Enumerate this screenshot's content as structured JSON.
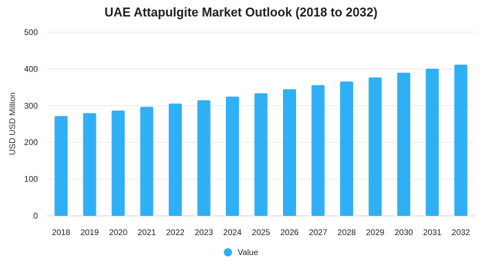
{
  "chart_data": {
    "type": "bar",
    "title": "UAE Attapulgite Market Outlook (2018 to 2032)",
    "xlabel": "",
    "ylabel": "USD USD Million",
    "categories": [
      "2018",
      "2019",
      "2020",
      "2021",
      "2022",
      "2023",
      "2024",
      "2025",
      "2026",
      "2027",
      "2028",
      "2029",
      "2030",
      "2031",
      "2032"
    ],
    "series": [
      {
        "name": "Value",
        "values": [
          272,
          280,
          287,
          297,
          306,
          315,
          325,
          334,
          345,
          356,
          366,
          377,
          390,
          401,
          412
        ]
      }
    ],
    "ylim": [
      0,
      500
    ],
    "yticks": [
      0,
      100,
      200,
      300,
      400,
      500
    ],
    "grid": true,
    "legend_position": "bottom",
    "colors": {
      "bar": "#2fb0f5",
      "grid": "#e6e6e6"
    }
  }
}
